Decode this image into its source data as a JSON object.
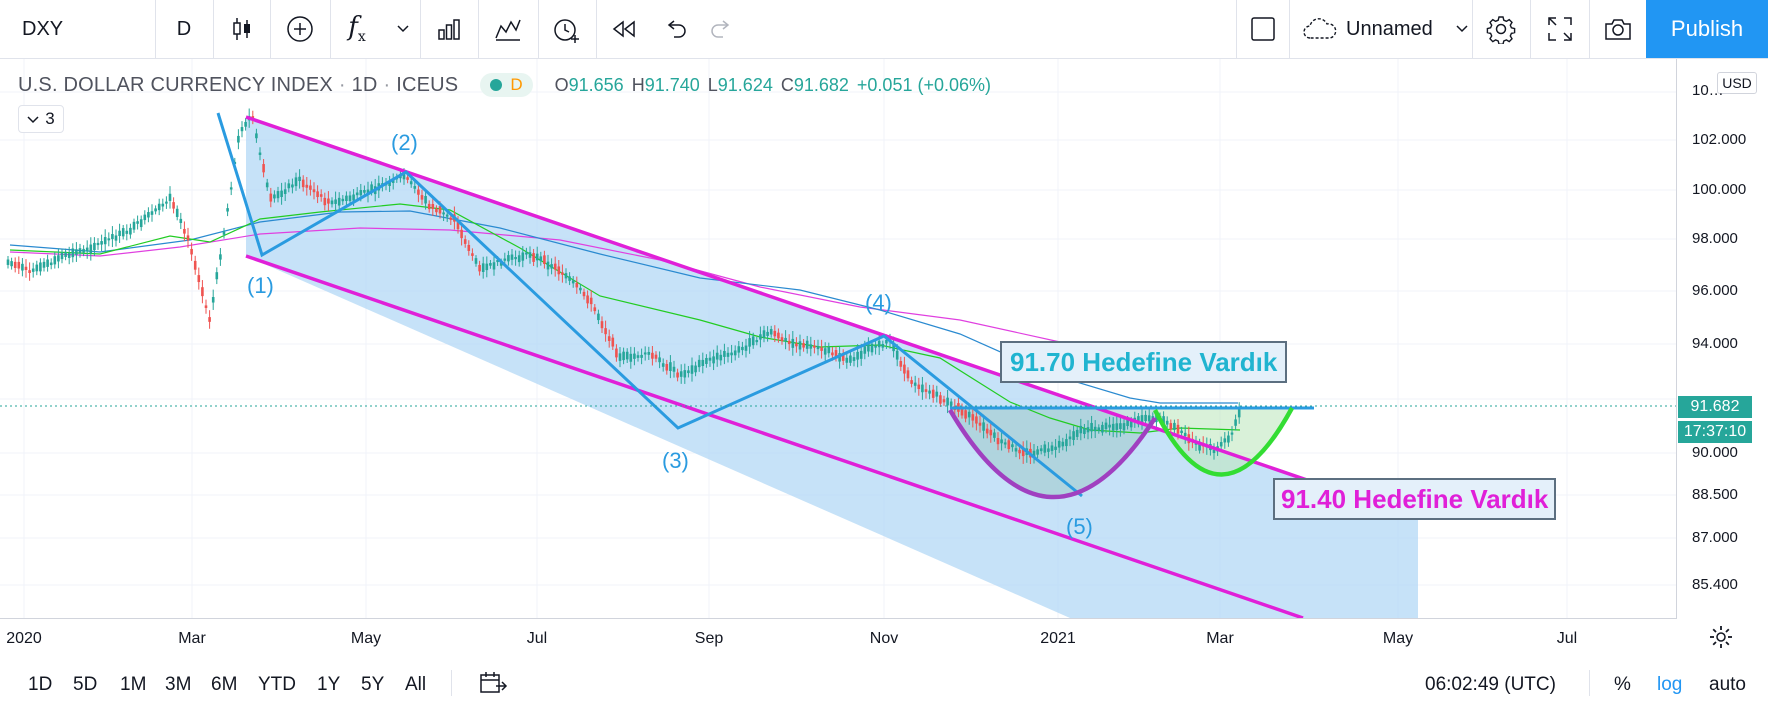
{
  "toolbar": {
    "symbol": "DXY",
    "interval": "D",
    "layout_name": "Unnamed",
    "publish_label": "Publish"
  },
  "legend": {
    "title": "U.S. DOLLAR CURRENCY INDEX",
    "interval": "1D",
    "exchange": "ICEUS",
    "status_badge": "D",
    "open_label": "O",
    "open": "91.656",
    "high_label": "H",
    "high": "91.740",
    "low_label": "L",
    "low": "91.624",
    "close_label": "C",
    "close": "91.682",
    "change": "+0.051 (+0.06%)",
    "indicators_count": "3"
  },
  "price_axis": {
    "currency": "USD",
    "ticks": [
      "10…",
      "102.000",
      "100.000",
      "98.000",
      "96.000",
      "94.000",
      "90.000",
      "88.500",
      "87.000",
      "85.400"
    ],
    "last_price": "91.682",
    "countdown": "17:37:10"
  },
  "time_axis": {
    "ticks": [
      "2020",
      "Mar",
      "May",
      "Jul",
      "Sep",
      "Nov",
      "2021",
      "Mar",
      "May",
      "Jul"
    ]
  },
  "annotations": {
    "waves": [
      "(1)",
      "(2)",
      "(3)",
      "(4)",
      "(5)"
    ],
    "target_1": "91.70 Hedefine Vardık",
    "target_2": "91.40 Hedefine Vardık"
  },
  "bottom_bar": {
    "ranges": [
      "1D",
      "5D",
      "1M",
      "3M",
      "6M",
      "YTD",
      "1Y",
      "5Y",
      "All"
    ],
    "clock": "06:02:49 (UTC)",
    "percent": "%",
    "log": "log",
    "auto": "auto"
  },
  "colors": {
    "accent": "#2196f3",
    "up": "#26a69a",
    "down": "#ef5350",
    "channel": "#e020d8",
    "wave": "#2a9be0",
    "cup": "#a040c0",
    "handle": "#33dd33",
    "channel_fill": "#b3d8f5"
  }
}
